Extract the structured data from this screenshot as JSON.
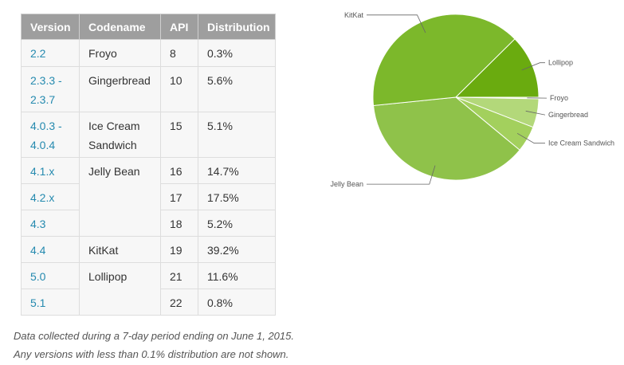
{
  "table": {
    "headers": [
      "Version",
      "Codename",
      "API",
      "Distribution"
    ],
    "rows": [
      {
        "version": "2.2",
        "version_line2": "",
        "codename": "Froyo",
        "codename_line2": "",
        "api": "8",
        "distribution": "0.3%"
      },
      {
        "version": "2.3.3 -",
        "version_line2": "2.3.7",
        "codename": "Gingerbread",
        "codename_line2": "",
        "api": "10",
        "distribution": "5.6%"
      },
      {
        "version": "4.0.3 -",
        "version_line2": "4.0.4",
        "codename": "Ice Cream",
        "codename_line2": "Sandwich",
        "api": "15",
        "distribution": "5.1%"
      },
      {
        "version": "4.1.x",
        "version_line2": "",
        "codename": "Jelly Bean",
        "codename_line2": "",
        "api": "16",
        "distribution": "14.7%"
      },
      {
        "version": "4.2.x",
        "version_line2": "",
        "codename": "",
        "codename_line2": "",
        "api": "17",
        "distribution": "17.5%"
      },
      {
        "version": "4.3",
        "version_line2": "",
        "codename": "",
        "codename_line2": "",
        "api": "18",
        "distribution": "5.2%"
      },
      {
        "version": "4.4",
        "version_line2": "",
        "codename": "KitKat",
        "codename_line2": "",
        "api": "19",
        "distribution": "39.2%"
      },
      {
        "version": "5.0",
        "version_line2": "",
        "codename": "Lollipop",
        "codename_line2": "",
        "api": "21",
        "distribution": "11.6%"
      },
      {
        "version": "5.1",
        "version_line2": "",
        "codename": "",
        "codename_line2": "",
        "api": "22",
        "distribution": "0.8%"
      }
    ]
  },
  "footnotes": [
    "Data collected during a 7-day period ending on June 1, 2015.",
    "Any versions with less than 0.1% distribution are not shown."
  ],
  "chart_data": {
    "type": "pie",
    "title": "",
    "start": "3 o'clock, clockwise",
    "labels": [
      "Froyo",
      "Gingerbread",
      "Ice Cream Sandwich",
      "Jelly Bean",
      "KitKat",
      "Lollipop"
    ],
    "values": [
      0.3,
      5.6,
      5.1,
      37.4,
      39.2,
      12.4
    ],
    "colors": [
      "#e4efc7",
      "#b3d87a",
      "#a3d05d",
      "#8fc24a",
      "#7cb82b",
      "#6aab0f"
    ]
  }
}
